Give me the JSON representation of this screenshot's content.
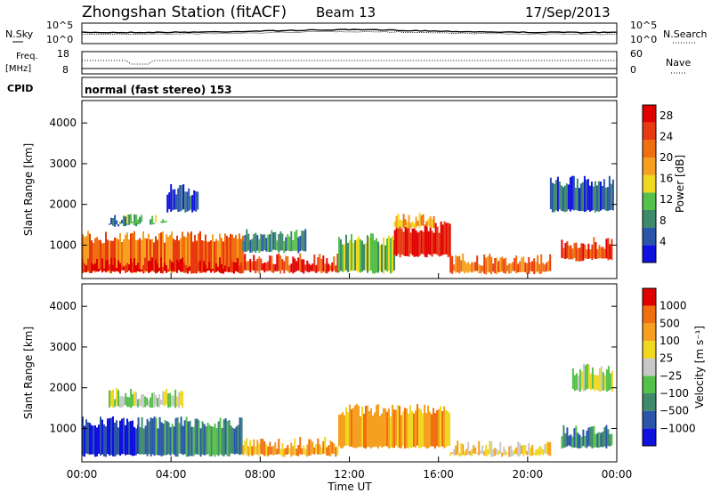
{
  "header": {
    "title": "Zhongshan Station (fitACF)",
    "beam": "Beam 13",
    "date": "17/Sep/2013"
  },
  "strips": {
    "nsky_label": "N.Sky",
    "nsky_ticks": [
      "10^5",
      "10^0"
    ],
    "nsearch_label": "N.Search",
    "nsearch_ticks": [
      "10^5",
      "10^0"
    ],
    "freq_label_1": "Freq.",
    "freq_label_2": "[MHz]",
    "freq_ticks": [
      "18",
      "8"
    ],
    "nave_label": "Nave",
    "nave_ticks": [
      "60",
      "0"
    ],
    "cpid_label": "CPID",
    "cpid_text": "normal (fast stereo) 153"
  },
  "colors": {
    "power": [
      "#1010e0",
      "#2a55a8",
      "#3e8a6a",
      "#55c04a",
      "#f0d820",
      "#f5a020",
      "#f07010",
      "#e83a10",
      "#e00000"
    ],
    "velocity": [
      "#1010e0",
      "#2a55a8",
      "#3e8a6a",
      "#55c04a",
      "#c8c8c8",
      "#f0d820",
      "#f5a020",
      "#f07010",
      "#e00000"
    ]
  },
  "chart_data": [
    {
      "type": "heatmap",
      "name": "Power",
      "ylabel": "Slant Range [km]",
      "xlabel": "Time UT",
      "x_ticks": [
        "00:00",
        "04:00",
        "08:00",
        "12:00",
        "16:00",
        "20:00",
        "00:00"
      ],
      "xlim_hours": [
        0,
        24
      ],
      "ylim_km": [
        180,
        4550
      ],
      "y_ticks": [
        1000,
        2000,
        3000,
        4000
      ],
      "colorbar_label": "Power [dB]",
      "colorbar_ticks": [
        4,
        8,
        12,
        16,
        20,
        24,
        28
      ],
      "colorbar_range": [
        0,
        30
      ],
      "regions": [
        {
          "t0": 0.0,
          "t1": 7.2,
          "r0": 300,
          "r1": 1350,
          "level": 6
        },
        {
          "t0": 0.0,
          "t1": 7.2,
          "r0": 300,
          "r1": 700,
          "level": 8
        },
        {
          "t0": 1.2,
          "t1": 2.6,
          "r0": 1450,
          "r1": 1800,
          "level": 2
        },
        {
          "t0": 2.0,
          "t1": 3.8,
          "r0": 1500,
          "r1": 1750,
          "level": 3
        },
        {
          "t0": 3.8,
          "t1": 5.2,
          "r0": 1800,
          "r1": 2500,
          "level": 1
        },
        {
          "t0": 7.2,
          "t1": 11.6,
          "r0": 300,
          "r1": 800,
          "level": 7
        },
        {
          "t0": 7.2,
          "t1": 10.0,
          "r0": 800,
          "r1": 1400,
          "level": 2
        },
        {
          "t0": 11.5,
          "t1": 14.0,
          "r0": 300,
          "r1": 1300,
          "level": 3
        },
        {
          "t0": 14.0,
          "t1": 16.5,
          "r0": 700,
          "r1": 1600,
          "level": 8
        },
        {
          "t0": 14.0,
          "t1": 15.8,
          "r0": 1400,
          "r1": 1800,
          "level": 5
        },
        {
          "t0": 16.5,
          "t1": 21.0,
          "r0": 280,
          "r1": 800,
          "level": 6
        },
        {
          "t0": 21.5,
          "t1": 23.8,
          "r0": 600,
          "r1": 1200,
          "level": 7
        },
        {
          "t0": 21.0,
          "t1": 23.8,
          "r0": 1800,
          "r1": 2700,
          "level": 1
        }
      ]
    },
    {
      "type": "heatmap",
      "name": "Velocity",
      "ylabel": "Slant Range [km]",
      "xlabel": "Time UT",
      "x_ticks": [
        "00:00",
        "04:00",
        "08:00",
        "12:00",
        "16:00",
        "20:00",
        "00:00"
      ],
      "xlim_hours": [
        0,
        24
      ],
      "ylim_km": [
        180,
        4550
      ],
      "y_ticks": [
        1000,
        2000,
        3000,
        4000
      ],
      "colorbar_label": "Velocity [m s⁻¹]",
      "colorbar_ticks": [
        "1000",
        "500",
        "100",
        "25",
        "−25",
        "−100",
        "−500",
        "−1000"
      ],
      "regions": [
        {
          "t0": 0.0,
          "t1": 2.5,
          "r0": 300,
          "r1": 1300,
          "level": 0
        },
        {
          "t0": 2.5,
          "t1": 7.2,
          "r0": 300,
          "r1": 1300,
          "level": 2
        },
        {
          "t0": 1.2,
          "t1": 4.5,
          "r0": 1500,
          "r1": 2000,
          "level": 4
        },
        {
          "t0": 7.2,
          "t1": 11.5,
          "r0": 300,
          "r1": 800,
          "level": 6
        },
        {
          "t0": 11.5,
          "t1": 16.5,
          "r0": 500,
          "r1": 1600,
          "level": 6
        },
        {
          "t0": 16.5,
          "t1": 21.0,
          "r0": 300,
          "r1": 700,
          "level": 5
        },
        {
          "t0": 21.5,
          "t1": 23.8,
          "r0": 500,
          "r1": 1100,
          "level": 2
        },
        {
          "t0": 22.0,
          "t1": 23.8,
          "r0": 1900,
          "r1": 2600,
          "level": 4
        }
      ]
    }
  ]
}
